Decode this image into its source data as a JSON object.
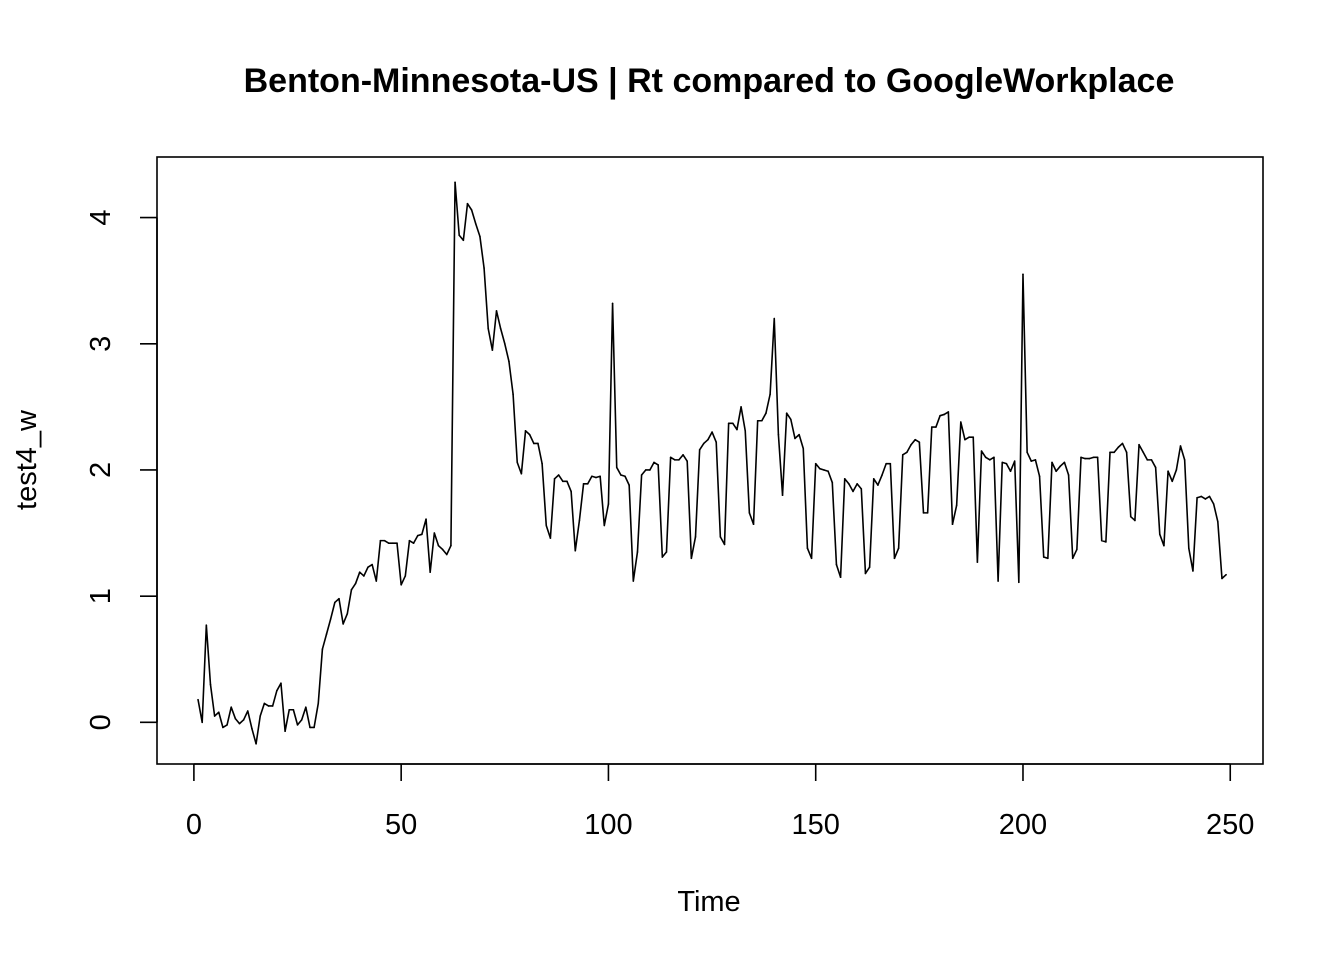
{
  "chart_data": {
    "type": "line",
    "title": "Benton-Minnesota-US | Rt compared to GoogleWorkplace",
    "xlabel": "Time",
    "ylabel": "test4_w",
    "xlim": [
      -8.9,
      257.9
    ],
    "ylim": [
      -0.33,
      4.48
    ],
    "xticks": [
      0,
      50,
      100,
      150,
      200,
      250
    ],
    "yticks": [
      0,
      1,
      2,
      3,
      4
    ],
    "grid": false,
    "legend": "none",
    "line_color": "#000000",
    "series": [
      {
        "x_start": 1,
        "values": [
          0.18,
          0.0,
          0.77,
          0.3,
          0.05,
          0.08,
          -0.04,
          -0.02,
          0.12,
          0.03,
          -0.01,
          0.02,
          0.09,
          -0.05,
          -0.17,
          0.05,
          0.15,
          0.13,
          0.13,
          0.25,
          0.31,
          -0.07,
          0.1,
          0.1,
          -0.02,
          0.02,
          0.12,
          -0.04,
          -0.04,
          0.15,
          0.58,
          0.7,
          0.82,
          0.95,
          0.98,
          0.78,
          0.86,
          1.05,
          1.1,
          1.19,
          1.16,
          1.23,
          1.25,
          1.12,
          1.44,
          1.44,
          1.42,
          1.42,
          1.42,
          1.09,
          1.16,
          1.44,
          1.42,
          1.48,
          1.49,
          1.61,
          1.19,
          1.5,
          1.4,
          1.37,
          1.33,
          1.4,
          4.28,
          3.86,
          3.82,
          4.11,
          4.06,
          3.95,
          3.85,
          3.6,
          3.12,
          2.95,
          3.26,
          3.12,
          3.0,
          2.86,
          2.6,
          2.06,
          1.97,
          2.31,
          2.28,
          2.21,
          2.21,
          2.05,
          1.56,
          1.46,
          1.93,
          1.96,
          1.91,
          1.91,
          1.83,
          1.36,
          1.6,
          1.89,
          1.89,
          1.95,
          1.94,
          1.95,
          1.56,
          1.73,
          3.32,
          2.02,
          1.96,
          1.95,
          1.88,
          1.12,
          1.35,
          1.96,
          2.0,
          2.0,
          2.06,
          2.04,
          1.31,
          1.35,
          2.1,
          2.08,
          2.08,
          2.12,
          2.07,
          1.3,
          1.47,
          2.16,
          2.21,
          2.24,
          2.3,
          2.22,
          1.47,
          1.41,
          2.37,
          2.37,
          2.32,
          2.5,
          2.31,
          1.66,
          1.57,
          2.39,
          2.39,
          2.45,
          2.6,
          3.2,
          2.28,
          1.8,
          2.45,
          2.4,
          2.25,
          2.28,
          2.17,
          1.38,
          1.3,
          2.05,
          2.01,
          2.0,
          1.99,
          1.9,
          1.25,
          1.15,
          1.93,
          1.89,
          1.83,
          1.89,
          1.85,
          1.18,
          1.23,
          1.93,
          1.88,
          1.96,
          2.05,
          2.05,
          1.3,
          1.38,
          2.12,
          2.14,
          2.2,
          2.24,
          2.22,
          1.66,
          1.66,
          2.34,
          2.34,
          2.43,
          2.44,
          2.46,
          1.57,
          1.72,
          2.38,
          2.24,
          2.26,
          2.26,
          1.27,
          2.15,
          2.1,
          2.08,
          2.1,
          1.12,
          2.06,
          2.05,
          1.99,
          2.07,
          1.11,
          3.55,
          2.14,
          2.07,
          2.08,
          1.95,
          1.31,
          1.3,
          2.06,
          1.99,
          2.03,
          2.06,
          1.96,
          1.3,
          1.37,
          2.1,
          2.09,
          2.09,
          2.1,
          2.1,
          1.44,
          1.43,
          2.14,
          2.14,
          2.18,
          2.21,
          2.14,
          1.63,
          1.6,
          2.2,
          2.14,
          2.08,
          2.08,
          2.02,
          1.49,
          1.4,
          1.99,
          1.91,
          2.0,
          2.19,
          2.08,
          1.38,
          1.2,
          1.78,
          1.79,
          1.77,
          1.79,
          1.73,
          1.59,
          1.14,
          1.17
        ]
      }
    ]
  }
}
